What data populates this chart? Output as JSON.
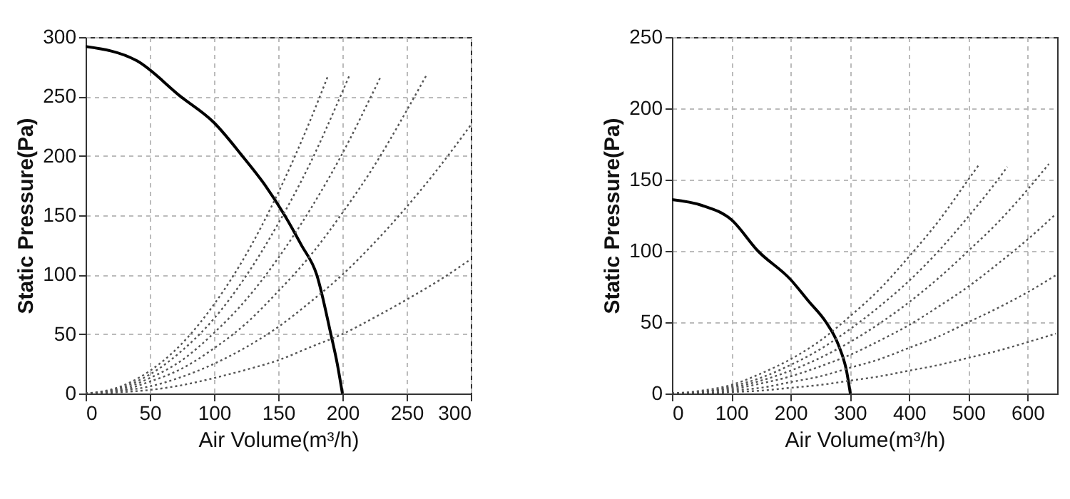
{
  "chart_data": [
    {
      "type": "line",
      "xlabel": "Air Volume(m³/h)",
      "ylabel": "Static Pressure(Pa)",
      "xlim": [
        0,
        300
      ],
      "ylim": [
        0,
        300
      ],
      "xticks": [
        0,
        50,
        100,
        150,
        200,
        250,
        300
      ],
      "yticks": [
        0,
        50,
        100,
        150,
        200,
        250,
        300
      ],
      "grid": true,
      "marker": "none",
      "series": [
        {
          "color": "#000000",
          "line_style": "solid",
          "x": [
            0,
            40,
            74,
            100,
            122,
            140,
            155,
            168,
            180,
            191,
            196,
            200
          ],
          "values": [
            292,
            280,
            250,
            228,
            200,
            175,
            150,
            125,
            100,
            50,
            25,
            0
          ]
        },
        {
          "color": "#555555",
          "line_style": "dotted",
          "x": [
            0,
            25,
            50,
            75,
            100,
            125,
            150,
            175,
            189
          ],
          "values": [
            0,
            5,
            19,
            42,
            75,
            117,
            169,
            230,
            268
          ]
        },
        {
          "color": "#555555",
          "line_style": "dotted",
          "x": [
            0,
            25,
            50,
            75,
            100,
            125,
            150,
            175,
            200,
            206
          ],
          "values": [
            0,
            4,
            16,
            36,
            63,
            99,
            143,
            194,
            254,
            269
          ]
        },
        {
          "color": "#555555",
          "line_style": "dotted",
          "x": [
            0,
            25,
            50,
            75,
            100,
            125,
            150,
            175,
            200,
            225,
            230
          ],
          "values": [
            0,
            3,
            13,
            28,
            51,
            79,
            114,
            155,
            202,
            256,
            267
          ]
        },
        {
          "color": "#555555",
          "line_style": "dotted",
          "x": [
            0,
            25,
            50,
            75,
            100,
            125,
            150,
            175,
            200,
            225,
            250,
            266
          ],
          "values": [
            0,
            2,
            10,
            21,
            38,
            59,
            86,
            116,
            152,
            192,
            238,
            269
          ]
        },
        {
          "color": "#555555",
          "line_style": "dotted",
          "x": [
            0,
            25,
            50,
            75,
            100,
            125,
            150,
            175,
            200,
            225,
            250,
            275,
            300
          ],
          "values": [
            0,
            2,
            6,
            14,
            25,
            39,
            56,
            77,
            100,
            127,
            157,
            190,
            226
          ]
        },
        {
          "color": "#555555",
          "line_style": "dotted",
          "x": [
            0,
            25,
            50,
            75,
            100,
            125,
            150,
            175,
            200,
            225,
            250,
            275,
            300
          ],
          "values": [
            0,
            1,
            3,
            7,
            13,
            20,
            28,
            39,
            50,
            64,
            79,
            95,
            113
          ]
        }
      ]
    },
    {
      "type": "line",
      "xlabel": "Air Volume(m³/h)",
      "ylabel": "Static Pressure(Pa)",
      "xlim": [
        0,
        650
      ],
      "ylim": [
        0,
        250
      ],
      "xticks": [
        0,
        100,
        200,
        300,
        400,
        500,
        600
      ],
      "yticks": [
        0,
        50,
        100,
        150,
        200,
        250
      ],
      "grid": true,
      "marker": "none",
      "series": [
        {
          "color": "#000000",
          "line_style": "solid",
          "x": [
            0,
            50,
            100,
            145,
            200,
            230,
            260,
            280,
            295,
            301
          ],
          "values": [
            136,
            132,
            122,
            100,
            80,
            65,
            50,
            35,
            15,
            0
          ]
        },
        {
          "color": "#555555",
          "line_style": "dotted",
          "x": [
            0,
            50,
            100,
            150,
            200,
            250,
            300,
            350,
            400,
            450,
            500,
            519
          ],
          "values": [
            0,
            2,
            6,
            14,
            24,
            37,
            54,
            73,
            96,
            121,
            150,
            161
          ]
        },
        {
          "color": "#555555",
          "line_style": "dotted",
          "x": [
            0,
            50,
            100,
            150,
            200,
            250,
            300,
            350,
            400,
            450,
            500,
            550,
            566
          ],
          "values": [
            0,
            1,
            5,
            11,
            20,
            31,
            45,
            61,
            79,
            100,
            124,
            150,
            159
          ]
        },
        {
          "color": "#555555",
          "line_style": "dotted",
          "x": [
            0,
            50,
            100,
            150,
            200,
            250,
            300,
            350,
            400,
            450,
            500,
            550,
            600,
            636
          ],
          "values": [
            0,
            1,
            4,
            9,
            16,
            25,
            36,
            49,
            64,
            81,
            100,
            120,
            143,
            161
          ]
        },
        {
          "color": "#555555",
          "line_style": "dotted",
          "x": [
            0,
            50,
            100,
            150,
            200,
            250,
            300,
            350,
            400,
            450,
            500,
            550,
            600,
            648
          ],
          "values": [
            0,
            1,
            3,
            7,
            12,
            19,
            27,
            37,
            48,
            61,
            75,
            91,
            108,
            126
          ]
        },
        {
          "color": "#555555",
          "line_style": "dotted",
          "x": [
            0,
            50,
            100,
            150,
            200,
            250,
            300,
            350,
            400,
            450,
            500,
            550,
            600,
            648
          ],
          "values": [
            0,
            0,
            2,
            4,
            8,
            12,
            18,
            24,
            32,
            40,
            50,
            60,
            71,
            83
          ]
        },
        {
          "color": "#555555",
          "line_style": "dotted",
          "x": [
            0,
            50,
            100,
            150,
            200,
            250,
            300,
            350,
            400,
            450,
            500,
            550,
            600,
            648
          ],
          "values": [
            0,
            0,
            1,
            2,
            4,
            6,
            9,
            12,
            16,
            20,
            25,
            30,
            36,
            42
          ]
        }
      ]
    }
  ]
}
